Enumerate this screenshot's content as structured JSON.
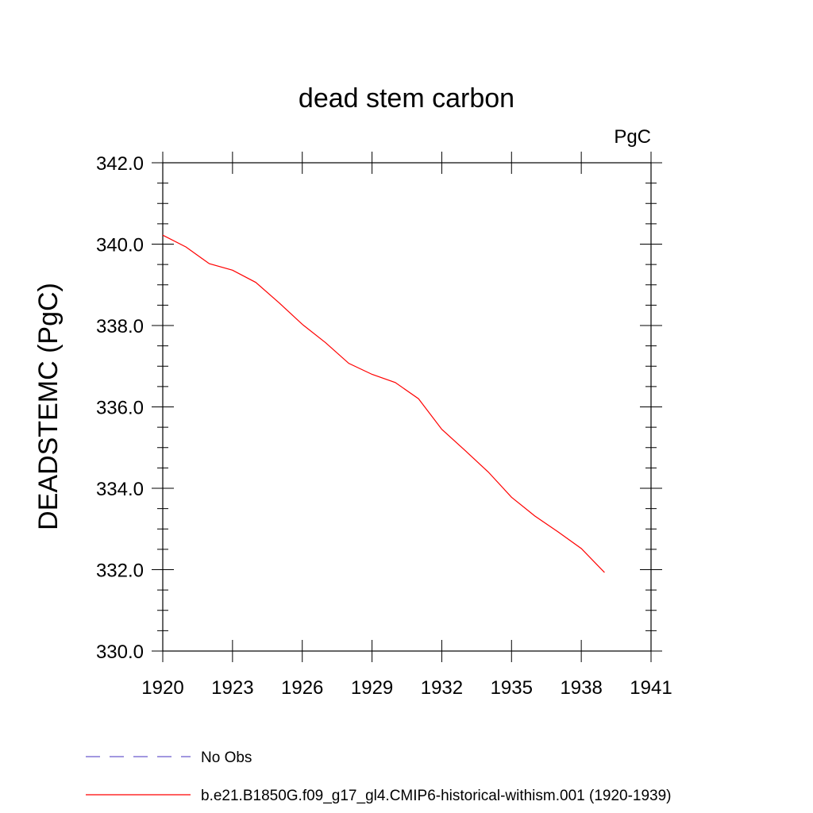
{
  "chart_data": {
    "type": "line",
    "title": "dead stem carbon",
    "units": "PgC",
    "xlabel": "",
    "ylabel": "DEADSTEMC  (PgC)",
    "xlim": [
      1920,
      1941
    ],
    "ylim": [
      330.0,
      342.0
    ],
    "x_ticks": [
      1920,
      1923,
      1926,
      1929,
      1932,
      1935,
      1938,
      1941
    ],
    "x_tick_labels": [
      "1920",
      "1923",
      "1926",
      "1929",
      "1932",
      "1935",
      "1938",
      "1941"
    ],
    "y_ticks": [
      330.0,
      332.0,
      334.0,
      336.0,
      338.0,
      340.0,
      342.0
    ],
    "y_tick_labels": [
      "330.0",
      "332.0",
      "334.0",
      "336.0",
      "338.0",
      "340.0",
      "342.0"
    ],
    "grid": false,
    "legend_position": "bottom",
    "series": [
      {
        "name": "No Obs",
        "color": "#6a5acd",
        "dash": "dashed",
        "x": [],
        "y": []
      },
      {
        "name": "b.e21.B1850G.f09_g17_gl4.CMIP6-historical-withism.001 (1920-1939)",
        "color": "#ff0000",
        "dash": "solid",
        "x": [
          1920,
          1921,
          1922,
          1923,
          1924,
          1925,
          1926,
          1927,
          1928,
          1929,
          1930,
          1931,
          1932,
          1933,
          1934,
          1935,
          1936,
          1937,
          1938,
          1939
        ],
        "y": [
          340.22,
          339.93,
          339.52,
          339.36,
          339.06,
          338.56,
          338.03,
          337.58,
          337.07,
          336.8,
          336.6,
          336.2,
          335.45,
          334.93,
          334.4,
          333.78,
          333.32,
          332.93,
          332.52,
          331.93
        ]
      }
    ]
  }
}
